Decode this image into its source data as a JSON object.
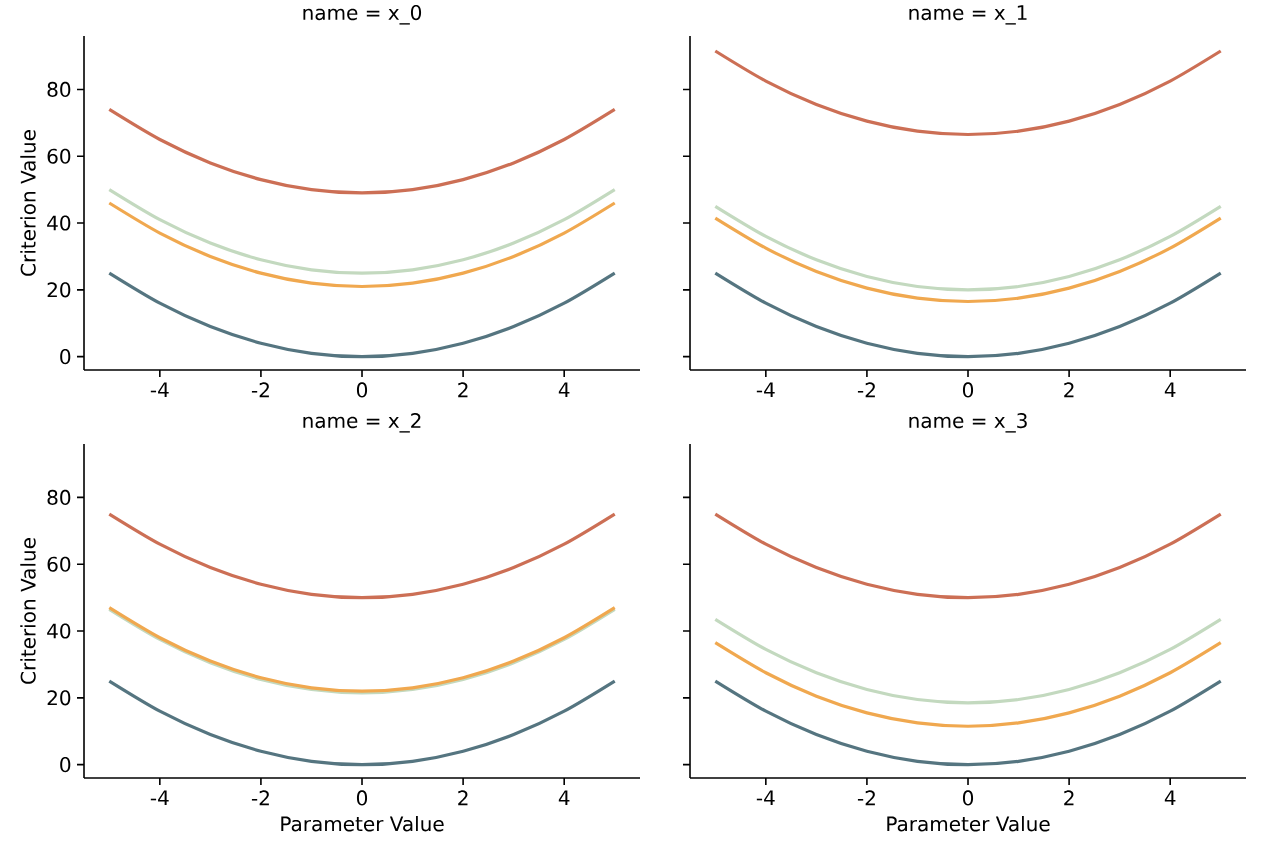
{
  "chart_data": [
    {
      "type": "line",
      "title": "name = x_0",
      "ylabel": "Criterion Value",
      "x": [
        -5,
        -4,
        -3,
        -2,
        -1,
        0,
        1,
        2,
        3,
        4,
        5
      ],
      "xlim": [
        -5.5,
        5.5
      ],
      "ylim": [
        -4,
        96
      ],
      "xticks": [
        -4,
        -2,
        0,
        2,
        4
      ],
      "yticks": [
        0,
        20,
        40,
        60,
        80
      ],
      "series": [
        {
          "color": "#557580",
          "values": [
            25,
            16,
            9,
            4,
            1,
            0,
            1,
            4,
            9,
            16,
            25
          ]
        },
        {
          "color": "#c3d9bf",
          "values": [
            50,
            41,
            34,
            29,
            26,
            25,
            26,
            29,
            34,
            41,
            50
          ]
        },
        {
          "color": "#f0a84f",
          "values": [
            46,
            37,
            30,
            25,
            22,
            21,
            22,
            25,
            30,
            37,
            46
          ]
        },
        {
          "color": "#cc6f55",
          "values": [
            74,
            65,
            58,
            53,
            50,
            49,
            50,
            53,
            58,
            65,
            74
          ]
        }
      ]
    },
    {
      "type": "line",
      "title": "name = x_1",
      "tick_labels": "x",
      "x": [
        -5,
        -4,
        -3,
        -2,
        -1,
        0,
        1,
        2,
        3,
        4,
        5
      ],
      "xlim": [
        -5.5,
        5.5
      ],
      "ylim": [
        -4,
        96
      ],
      "xticks": [
        -4,
        -2,
        0,
        2,
        4
      ],
      "yticks": [
        0,
        20,
        40,
        60,
        80
      ],
      "series": [
        {
          "color": "#557580",
          "values": [
            25,
            16,
            9,
            4,
            1,
            0,
            1,
            4,
            9,
            16,
            25
          ]
        },
        {
          "color": "#c3d9bf",
          "values": [
            45,
            36,
            29,
            24,
            21,
            20,
            21,
            24,
            29,
            36,
            45
          ]
        },
        {
          "color": "#f0a84f",
          "values": [
            41.5,
            32.5,
            25.5,
            20.5,
            17.5,
            16.5,
            17.5,
            20.5,
            25.5,
            32.5,
            41.5
          ]
        },
        {
          "color": "#cc6f55",
          "values": [
            91.5,
            82.5,
            75.5,
            70.5,
            67.5,
            66.5,
            67.5,
            70.5,
            75.5,
            82.5,
            91.5
          ]
        }
      ]
    },
    {
      "type": "line",
      "title": "name = x_2",
      "xlabel": "Parameter Value",
      "ylabel": "Criterion Value",
      "x": [
        -5,
        -4,
        -3,
        -2,
        -1,
        0,
        1,
        2,
        3,
        4,
        5
      ],
      "xlim": [
        -5.5,
        5.5
      ],
      "ylim": [
        -4,
        96
      ],
      "xticks": [
        -4,
        -2,
        0,
        2,
        4
      ],
      "yticks": [
        0,
        20,
        40,
        60,
        80
      ],
      "series": [
        {
          "color": "#557580",
          "values": [
            25,
            16,
            9,
            4,
            1,
            0,
            1,
            4,
            9,
            16,
            25
          ]
        },
        {
          "color": "#c3d9bf",
          "values": [
            46.5,
            37.5,
            30.5,
            25.5,
            22.5,
            21.5,
            22.5,
            25.5,
            30.5,
            37.5,
            46.5
          ]
        },
        {
          "color": "#f0a84f",
          "values": [
            47,
            38,
            31,
            26,
            23,
            22,
            23,
            26,
            31,
            38,
            47
          ]
        },
        {
          "color": "#cc6f55",
          "values": [
            75,
            66,
            59,
            54,
            51,
            50,
            51,
            54,
            59,
            66,
            75
          ]
        }
      ]
    },
    {
      "type": "line",
      "title": "name = x_3",
      "xlabel": "Parameter Value",
      "tick_labels": "x",
      "x": [
        -5,
        -4,
        -3,
        -2,
        -1,
        0,
        1,
        2,
        3,
        4,
        5
      ],
      "xlim": [
        -5.5,
        5.5
      ],
      "ylim": [
        -4,
        96
      ],
      "xticks": [
        -4,
        -2,
        0,
        2,
        4
      ],
      "yticks": [
        0,
        20,
        40,
        60,
        80
      ],
      "series": [
        {
          "color": "#557580",
          "values": [
            25,
            16,
            9,
            4,
            1,
            0,
            1,
            4,
            9,
            16,
            25
          ]
        },
        {
          "color": "#c3d9bf",
          "values": [
            43.5,
            34.5,
            27.5,
            22.5,
            19.5,
            18.5,
            19.5,
            22.5,
            27.5,
            34.5,
            43.5
          ]
        },
        {
          "color": "#f0a84f",
          "values": [
            36.5,
            27.5,
            20.5,
            15.5,
            12.5,
            11.5,
            12.5,
            15.5,
            20.5,
            27.5,
            36.5
          ]
        },
        {
          "color": "#cc6f55",
          "values": [
            75,
            66,
            59,
            54,
            51,
            50,
            51,
            54,
            59,
            66,
            75
          ]
        }
      ]
    }
  ]
}
